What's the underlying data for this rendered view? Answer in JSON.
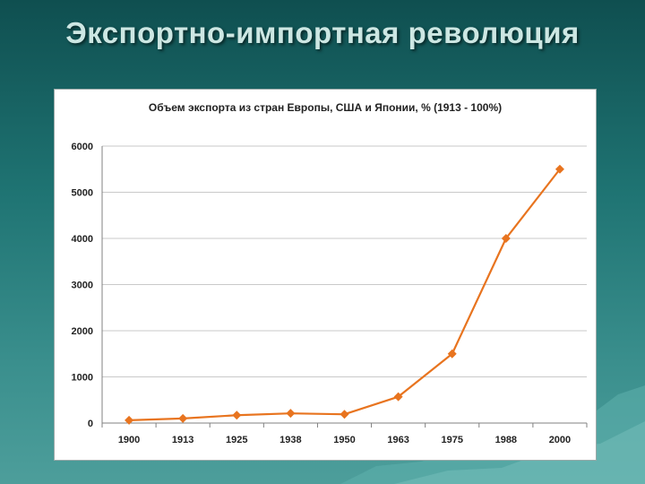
{
  "slide": {
    "title": "Экспортно-импортная революция"
  },
  "colors": {
    "line": "#e8741f",
    "grid": "#c9c9c9",
    "axis": "#808080"
  },
  "chart_data": {
    "type": "line",
    "title": "Объем экспорта из стран Европы, США и Японии, % (1913 - 100%)",
    "xlabel": "",
    "ylabel": "",
    "categories": [
      "1900",
      "1913",
      "1925",
      "1938",
      "1950",
      "1963",
      "1975",
      "1988",
      "2000"
    ],
    "series": [
      {
        "values": [
          60,
          100,
          170,
          210,
          190,
          570,
          1500,
          4000,
          5500
        ]
      }
    ],
    "ylim": [
      0,
      6000
    ],
    "yticks": [
      0,
      1000,
      2000,
      3000,
      4000,
      5000,
      6000
    ],
    "grid": true,
    "marker": "diamond",
    "legend": "none"
  }
}
